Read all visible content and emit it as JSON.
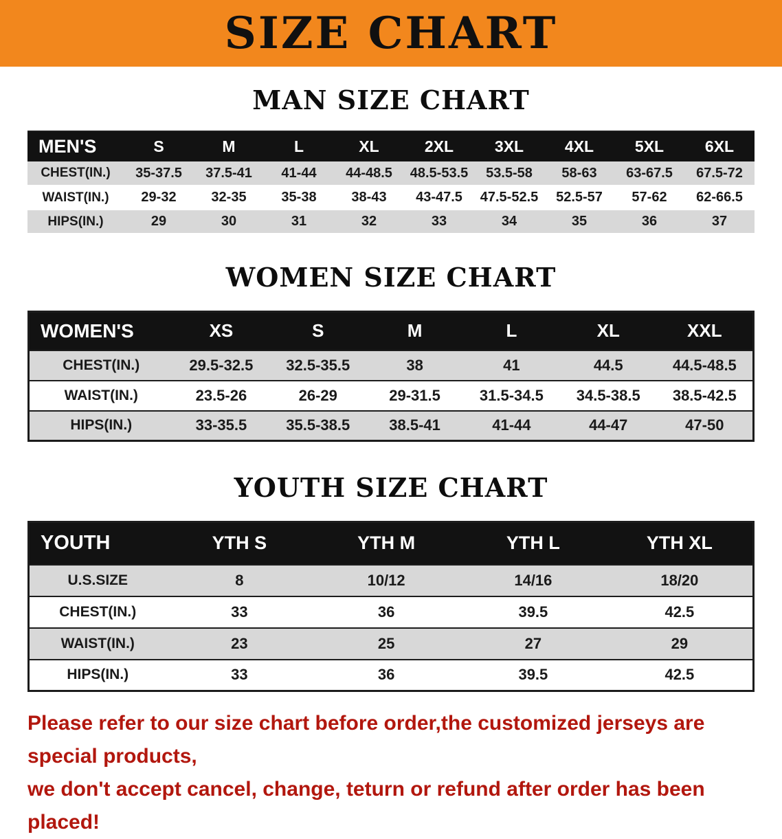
{
  "banner": {
    "title": "SIZE CHART"
  },
  "colors": {
    "banner_bg": "#f2871d",
    "header_bg": "#121212",
    "row_gray": "#d8d8d8",
    "disclaimer_red": "#b2170e"
  },
  "men": {
    "heading": "MAN SIZE CHART",
    "table": {
      "header": [
        "MEN'S",
        "S",
        "M",
        "L",
        "XL",
        "2XL",
        "3XL",
        "4XL",
        "5XL",
        "6XL"
      ],
      "rows": [
        [
          "CHEST(IN.)",
          "35-37.5",
          "37.5-41",
          "41-44",
          "44-48.5",
          "48.5-53.5",
          "53.5-58",
          "58-63",
          "63-67.5",
          "67.5-72"
        ],
        [
          "WAIST(IN.)",
          "29-32",
          "32-35",
          "35-38",
          "38-43",
          "43-47.5",
          "47.5-52.5",
          "52.5-57",
          "57-62",
          "62-66.5"
        ],
        [
          "HIPS(IN.)",
          "29",
          "30",
          "31",
          "32",
          "33",
          "34",
          "35",
          "36",
          "37"
        ]
      ]
    }
  },
  "women": {
    "heading": "WOMEN SIZE CHART",
    "table": {
      "header": [
        "WOMEN'S",
        "XS",
        "S",
        "M",
        "L",
        "XL",
        "XXL"
      ],
      "rows": [
        [
          "CHEST(IN.)",
          "29.5-32.5",
          "32.5-35.5",
          "38",
          "41",
          "44.5",
          "44.5-48.5"
        ],
        [
          "WAIST(IN.)",
          "23.5-26",
          "26-29",
          "29-31.5",
          "31.5-34.5",
          "34.5-38.5",
          "38.5-42.5"
        ],
        [
          "HIPS(IN.)",
          "33-35.5",
          "35.5-38.5",
          "38.5-41",
          "41-44",
          "44-47",
          "47-50"
        ]
      ]
    }
  },
  "youth": {
    "heading": "YOUTH SIZE CHART",
    "table": {
      "header": [
        "YOUTH",
        "YTH S",
        "YTH M",
        "YTH L",
        "YTH XL"
      ],
      "rows": [
        [
          "U.S.SIZE",
          "8",
          "10/12",
          "14/16",
          "18/20"
        ],
        [
          "CHEST(IN.)",
          "33",
          "36",
          "39.5",
          "42.5"
        ],
        [
          "WAIST(IN.)",
          "23",
          "25",
          "27",
          "29"
        ],
        [
          "HIPS(IN.)",
          "33",
          "36",
          "39.5",
          "42.5"
        ]
      ]
    }
  },
  "disclaimer": {
    "line1": "Please refer to our size chart before order,the customized jerseys are special products,",
    "line2": "we don't accept cancel, change, teturn or refund after order has been placed!"
  }
}
